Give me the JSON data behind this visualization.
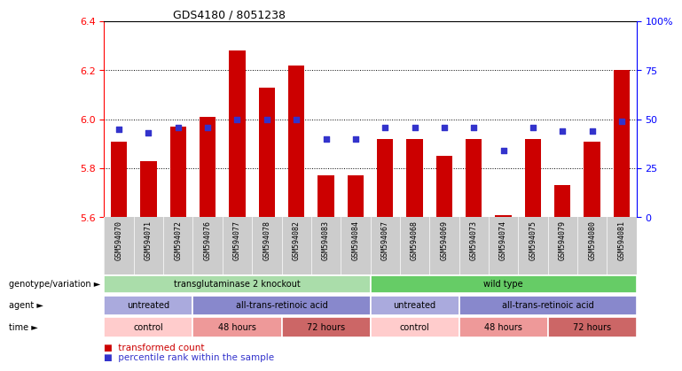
{
  "title": "GDS4180 / 8051238",
  "samples": [
    "GSM594070",
    "GSM594071",
    "GSM594072",
    "GSM594076",
    "GSM594077",
    "GSM594078",
    "GSM594082",
    "GSM594083",
    "GSM594084",
    "GSM594067",
    "GSM594068",
    "GSM594069",
    "GSM594073",
    "GSM594074",
    "GSM594075",
    "GSM594079",
    "GSM594080",
    "GSM594081"
  ],
  "bar_values": [
    5.91,
    5.83,
    5.97,
    6.01,
    6.28,
    6.13,
    6.22,
    5.77,
    5.77,
    5.92,
    5.92,
    5.85,
    5.92,
    5.61,
    5.92,
    5.73,
    5.91,
    6.2
  ],
  "dot_values": [
    45,
    43,
    46,
    46,
    50,
    50,
    50,
    40,
    40,
    46,
    46,
    46,
    46,
    34,
    46,
    44,
    44,
    49
  ],
  "ylim": [
    5.6,
    6.4
  ],
  "yticks": [
    5.6,
    5.8,
    6.0,
    6.2,
    6.4
  ],
  "right_yticks": [
    0,
    25,
    50,
    75,
    100
  ],
  "right_ylabels": [
    "0",
    "25",
    "50",
    "75",
    "100%"
  ],
  "bar_color": "#cc0000",
  "dot_color": "#3333cc",
  "bar_width": 0.55,
  "genotype_groups": [
    {
      "label": "transglutaminase 2 knockout",
      "start": 0,
      "end": 9,
      "color": "#aaddaa"
    },
    {
      "label": "wild type",
      "start": 9,
      "end": 18,
      "color": "#66cc66"
    }
  ],
  "agent_groups": [
    {
      "label": "untreated",
      "start": 0,
      "end": 3,
      "color": "#aaaadd"
    },
    {
      "label": "all-trans-retinoic acid",
      "start": 3,
      "end": 9,
      "color": "#8888cc"
    },
    {
      "label": "untreated",
      "start": 9,
      "end": 12,
      "color": "#aaaadd"
    },
    {
      "label": "all-trans-retinoic acid",
      "start": 12,
      "end": 18,
      "color": "#8888cc"
    }
  ],
  "time_groups": [
    {
      "label": "control",
      "start": 0,
      "end": 3,
      "color": "#ffcccc"
    },
    {
      "label": "48 hours",
      "start": 3,
      "end": 6,
      "color": "#ee9999"
    },
    {
      "label": "72 hours",
      "start": 6,
      "end": 9,
      "color": "#cc6666"
    },
    {
      "label": "control",
      "start": 9,
      "end": 12,
      "color": "#ffcccc"
    },
    {
      "label": "48 hours",
      "start": 12,
      "end": 15,
      "color": "#ee9999"
    },
    {
      "label": "72 hours",
      "start": 15,
      "end": 18,
      "color": "#cc6666"
    }
  ],
  "row_labels": [
    "genotype/variation",
    "agent",
    "time"
  ],
  "legend_items": [
    {
      "label": "transformed count",
      "color": "#cc0000"
    },
    {
      "label": "percentile rank within the sample",
      "color": "#3333cc"
    }
  ],
  "grid_dotted_at": [
    5.8,
    6.0,
    6.2
  ]
}
